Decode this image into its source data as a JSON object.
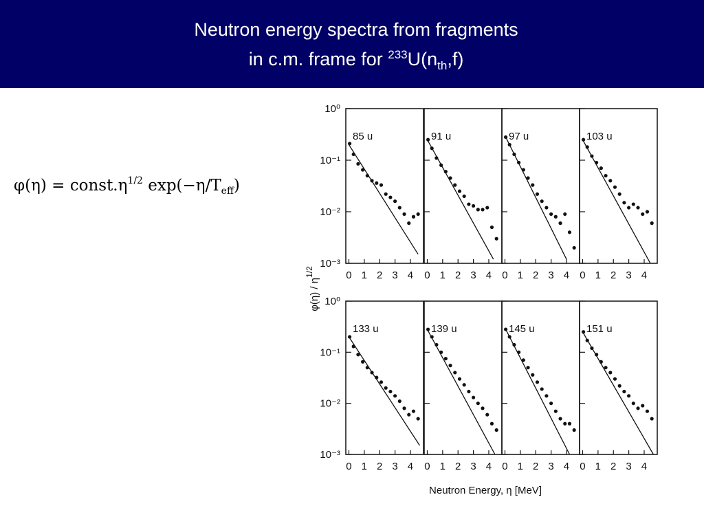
{
  "slide": {
    "title_line1": "Neutron energy spectra from fragments",
    "title_line2_prefix": "in c.m. frame for ",
    "title_superscript": "233",
    "title_middle": "U(n",
    "title_subscript": "th",
    "title_suffix": ",f)"
  },
  "formula": {
    "main": "φ(η) = const.η",
    "sup": "1/2",
    "middle": " exp(−η/T",
    "sub": "eff",
    "end": ")"
  },
  "figure": {
    "y_label": "φ(η)  /  η",
    "y_label_sup": "1/2",
    "x_label": "Neutron  Energy,  η  [MeV]"
  },
  "chart_data": [
    {
      "type": "scatter",
      "title": "85  u",
      "log_y": true,
      "xlim": [
        -0.2,
        4.85
      ],
      "ylim": [
        0.001,
        1
      ],
      "xticks": [
        0,
        1,
        2,
        3,
        4
      ],
      "yticks": [
        {
          "value": 1,
          "label": "10⁰"
        },
        {
          "value": 0.1,
          "label": "10⁻¹"
        },
        {
          "value": 0.01,
          "label": "10⁻²"
        },
        {
          "value": 0.001,
          "label": "10⁻³"
        }
      ],
      "x": [
        0.05,
        0.3,
        0.6,
        0.9,
        1.2,
        1.5,
        1.8,
        2.1,
        2.4,
        2.7,
        3.0,
        3.3,
        3.6,
        3.9,
        4.2,
        4.5
      ],
      "values": [
        0.21,
        0.13,
        0.085,
        0.065,
        0.05,
        0.04,
        0.036,
        0.033,
        0.022,
        0.019,
        0.016,
        0.012,
        0.009,
        0.006,
        0.008,
        0.009
      ],
      "fit_x": [
        0,
        4.5
      ],
      "fit_values": [
        0.2,
        0.0015
      ]
    },
    {
      "type": "scatter",
      "title": "91  u",
      "log_y": true,
      "xlim": [
        -0.2,
        4.85
      ],
      "ylim": [
        0.001,
        1
      ],
      "xticks": [
        0,
        1,
        2,
        3,
        4
      ],
      "yticks": [
        1,
        0.1,
        0.01,
        0.001
      ],
      "x": [
        0.05,
        0.3,
        0.6,
        0.9,
        1.2,
        1.5,
        1.8,
        2.1,
        2.4,
        2.7,
        3.0,
        3.3,
        3.6,
        3.9,
        4.2,
        4.5
      ],
      "values": [
        0.25,
        0.17,
        0.11,
        0.08,
        0.06,
        0.045,
        0.033,
        0.025,
        0.02,
        0.014,
        0.013,
        0.011,
        0.011,
        0.012,
        0.005,
        0.003
      ],
      "fit_x": [
        0,
        4.3
      ],
      "fit_values": [
        0.25,
        0.0012
      ]
    },
    {
      "type": "scatter",
      "title": "97  u",
      "log_y": true,
      "xlim": [
        -0.2,
        4.85
      ],
      "ylim": [
        0.001,
        1
      ],
      "xticks": [
        0,
        1,
        2,
        3,
        4
      ],
      "yticks": [
        1,
        0.1,
        0.01,
        0.001
      ],
      "x": [
        0.05,
        0.3,
        0.6,
        0.9,
        1.2,
        1.5,
        1.8,
        2.1,
        2.4,
        2.7,
        3.0,
        3.3,
        3.6,
        3.9,
        4.2,
        4.5
      ],
      "values": [
        0.28,
        0.2,
        0.13,
        0.09,
        0.065,
        0.045,
        0.033,
        0.022,
        0.016,
        0.012,
        0.009,
        0.008,
        0.006,
        0.009,
        0.004,
        0.002
      ],
      "fit_x": [
        0,
        4.0
      ],
      "fit_values": [
        0.3,
        0.0012
      ]
    },
    {
      "type": "scatter",
      "title": "103  u",
      "log_y": true,
      "xlim": [
        -0.2,
        4.85
      ],
      "ylim": [
        0.001,
        1
      ],
      "xticks": [
        0,
        1,
        2,
        3,
        4
      ],
      "yticks": [
        1,
        0.1,
        0.01,
        0.001
      ],
      "x": [
        0.05,
        0.3,
        0.6,
        0.9,
        1.2,
        1.5,
        1.8,
        2.1,
        2.4,
        2.7,
        3.0,
        3.3,
        3.6,
        3.9,
        4.2,
        4.5
      ],
      "values": [
        0.25,
        0.18,
        0.12,
        0.09,
        0.07,
        0.05,
        0.04,
        0.03,
        0.022,
        0.015,
        0.012,
        0.014,
        0.012,
        0.009,
        0.01,
        0.006
      ],
      "fit_x": [
        0,
        4.4
      ],
      "fit_values": [
        0.25,
        0.001
      ]
    },
    {
      "type": "scatter",
      "title": "133  u",
      "log_y": true,
      "xlim": [
        -0.2,
        4.85
      ],
      "ylim": [
        0.001,
        1
      ],
      "xticks": [
        0,
        1,
        2,
        3,
        4
      ],
      "yticks": [
        {
          "value": 1,
          "label": "10⁰"
        },
        {
          "value": 0.1,
          "label": "10⁻¹"
        },
        {
          "value": 0.01,
          "label": "10⁻²"
        },
        {
          "value": 0.001,
          "label": "10⁻³"
        }
      ],
      "x": [
        0.05,
        0.3,
        0.6,
        0.9,
        1.2,
        1.5,
        1.8,
        2.1,
        2.4,
        2.7,
        3.0,
        3.3,
        3.6,
        3.9,
        4.2,
        4.5
      ],
      "values": [
        0.2,
        0.13,
        0.09,
        0.065,
        0.05,
        0.04,
        0.032,
        0.026,
        0.02,
        0.017,
        0.014,
        0.011,
        0.008,
        0.006,
        0.007,
        0.005
      ],
      "fit_x": [
        0,
        4.6
      ],
      "fit_values": [
        0.2,
        0.0015
      ]
    },
    {
      "type": "scatter",
      "title": "139  u",
      "log_y": true,
      "xlim": [
        -0.2,
        4.85
      ],
      "ylim": [
        0.001,
        1
      ],
      "xticks": [
        0,
        1,
        2,
        3,
        4
      ],
      "yticks": [
        1,
        0.1,
        0.01,
        0.001
      ],
      "x": [
        0.05,
        0.3,
        0.6,
        0.9,
        1.2,
        1.5,
        1.8,
        2.1,
        2.4,
        2.7,
        3.0,
        3.3,
        3.6,
        3.9,
        4.2,
        4.5
      ],
      "values": [
        0.28,
        0.2,
        0.14,
        0.1,
        0.075,
        0.055,
        0.04,
        0.03,
        0.023,
        0.017,
        0.013,
        0.01,
        0.008,
        0.006,
        0.004,
        0.003
      ],
      "fit_x": [
        0,
        4.4
      ],
      "fit_values": [
        0.28,
        0.001
      ]
    },
    {
      "type": "scatter",
      "title": "145  u",
      "log_y": true,
      "xlim": [
        -0.2,
        4.85
      ],
      "ylim": [
        0.001,
        1
      ],
      "xticks": [
        0,
        1,
        2,
        3,
        4
      ],
      "yticks": [
        1,
        0.1,
        0.01,
        0.001
      ],
      "x": [
        0.05,
        0.3,
        0.6,
        0.9,
        1.2,
        1.5,
        1.8,
        2.1,
        2.4,
        2.7,
        3.0,
        3.3,
        3.6,
        3.9,
        4.2,
        4.5
      ],
      "values": [
        0.28,
        0.2,
        0.14,
        0.1,
        0.07,
        0.05,
        0.036,
        0.026,
        0.019,
        0.014,
        0.01,
        0.007,
        0.005,
        0.004,
        0.004,
        0.003
      ],
      "fit_x": [
        0,
        4.2
      ],
      "fit_values": [
        0.3,
        0.001
      ]
    },
    {
      "type": "scatter",
      "title": "151  u",
      "log_y": true,
      "xlim": [
        -0.2,
        4.85
      ],
      "ylim": [
        0.001,
        1
      ],
      "xticks": [
        0,
        1,
        2,
        3,
        4
      ],
      "yticks": [
        1,
        0.1,
        0.01,
        0.001
      ],
      "x": [
        0.05,
        0.3,
        0.6,
        0.9,
        1.2,
        1.5,
        1.8,
        2.1,
        2.4,
        2.7,
        3.0,
        3.3,
        3.6,
        3.9,
        4.2,
        4.5
      ],
      "values": [
        0.25,
        0.17,
        0.12,
        0.09,
        0.065,
        0.05,
        0.04,
        0.03,
        0.022,
        0.017,
        0.014,
        0.01,
        0.008,
        0.009,
        0.007,
        0.005
      ],
      "fit_x": [
        0,
        4.6
      ],
      "fit_values": [
        0.25,
        0.001
      ]
    }
  ]
}
